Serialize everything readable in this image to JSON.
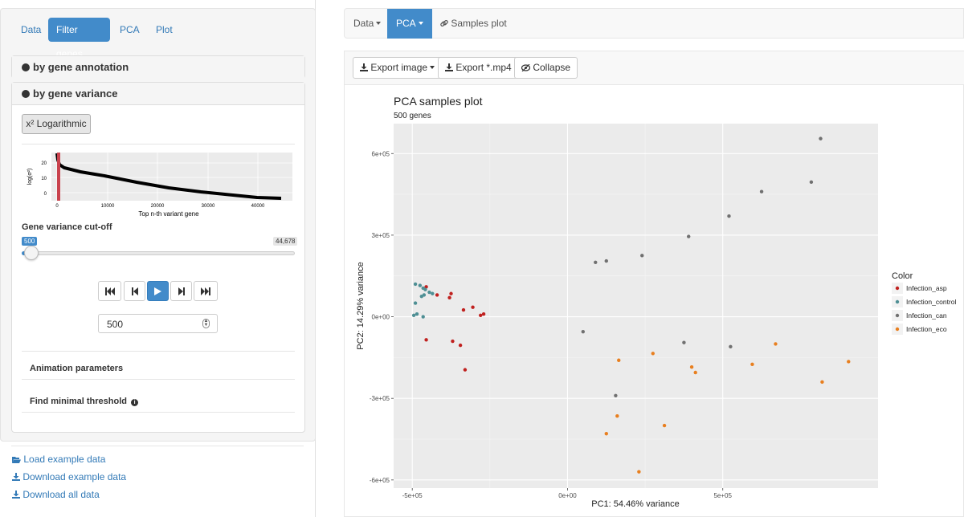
{
  "sidebar": {
    "tabs": [
      {
        "label": "Data"
      },
      {
        "label": "Filter genes"
      },
      {
        "label": "PCA"
      },
      {
        "label": "Plot"
      }
    ],
    "annotation_panel": {
      "title": "by gene annotation"
    },
    "variance_panel": {
      "title": "by gene variance",
      "log_button": "x² Logarithmic",
      "mini_chart": {
        "ylabel": "log(σ²)",
        "xlabel": "Top n-th variant gene",
        "yticks": [
          "20",
          "10",
          "0"
        ],
        "xticks": [
          "0",
          "10000",
          "20000",
          "30000",
          "40000"
        ]
      },
      "slider": {
        "label": "Gene variance cut-off",
        "value_label": "500",
        "max_label": "44,678",
        "value": 500,
        "max": 44678
      },
      "number_input": {
        "value": "500"
      },
      "animation_parameters": "Animation parameters",
      "find_threshold": "Find minimal threshold"
    },
    "links": {
      "load_example": "Load example data",
      "download_example": "Download example data",
      "download_all": "Download all data"
    }
  },
  "nav": {
    "data": "Data",
    "pca": "PCA",
    "samples_plot": "Samples plot"
  },
  "toolbar": {
    "export_image": "Export image",
    "export_mp4": "Export *.mp4",
    "collapse": "Collapse"
  },
  "chart_data": {
    "type": "scatter",
    "title": "PCA samples plot",
    "subtitle": "500 genes",
    "xlabel": "PC1: 54.46% variance",
    "ylabel": "PC2: 14.29% variance",
    "xlim": [
      -560000,
      1000000
    ],
    "ylim": [
      -630000,
      710000
    ],
    "xticks": [
      {
        "value": -500000,
        "label": "-5e+05"
      },
      {
        "value": 0,
        "label": "0e+00"
      },
      {
        "value": 500000,
        "label": "5e+05"
      }
    ],
    "yticks": [
      {
        "value": 600000,
        "label": "6e+05"
      },
      {
        "value": 300000,
        "label": "3e+05"
      },
      {
        "value": 0,
        "label": "0e+00"
      },
      {
        "value": -300000,
        "label": "-3e+05"
      },
      {
        "value": -600000,
        "label": "-6e+05"
      }
    ],
    "grid": true,
    "legend_title": "Color",
    "legend_position": "right",
    "series": [
      {
        "name": "Infection_asp",
        "color": "#c0211f",
        "points": [
          [
            -455000,
            110000
          ],
          [
            -420000,
            80000
          ],
          [
            -380000,
            70000
          ],
          [
            -375000,
            85000
          ],
          [
            -335000,
            25000
          ],
          [
            -305000,
            35000
          ],
          [
            -280000,
            5000
          ],
          [
            -270000,
            10000
          ],
          [
            -455000,
            -85000
          ],
          [
            -370000,
            -90000
          ],
          [
            -345000,
            -105000
          ],
          [
            -330000,
            -195000
          ]
        ]
      },
      {
        "name": "Infection_control",
        "color": "#4e8f94",
        "points": [
          [
            -490000,
            120000
          ],
          [
            -475000,
            115000
          ],
          [
            -465000,
            105000
          ],
          [
            -458000,
            100000
          ],
          [
            -445000,
            90000
          ],
          [
            -435000,
            85000
          ],
          [
            -462000,
            80000
          ],
          [
            -470000,
            75000
          ],
          [
            -490000,
            50000
          ],
          [
            -495000,
            5000
          ],
          [
            -485000,
            10000
          ],
          [
            -465000,
            0
          ]
        ]
      },
      {
        "name": "Infection_can",
        "color": "#707070",
        "points": [
          [
            815000,
            655000
          ],
          [
            785000,
            495000
          ],
          [
            625000,
            460000
          ],
          [
            520000,
            370000
          ],
          [
            390000,
            295000
          ],
          [
            240000,
            225000
          ],
          [
            125000,
            205000
          ],
          [
            90000,
            200000
          ],
          [
            50000,
            -55000
          ],
          [
            375000,
            -95000
          ],
          [
            525000,
            -110000
          ],
          [
            155000,
            -290000
          ]
        ]
      },
      {
        "name": "Infection_eco",
        "color": "#e87f1f",
        "points": [
          [
            905000,
            -165000
          ],
          [
            670000,
            -100000
          ],
          [
            595000,
            -175000
          ],
          [
            820000,
            -240000
          ],
          [
            275000,
            -135000
          ],
          [
            400000,
            -185000
          ],
          [
            412000,
            -205000
          ],
          [
            165000,
            -160000
          ],
          [
            160000,
            -365000
          ],
          [
            312000,
            -400000
          ],
          [
            125000,
            -430000
          ],
          [
            230000,
            -570000
          ]
        ]
      }
    ]
  }
}
